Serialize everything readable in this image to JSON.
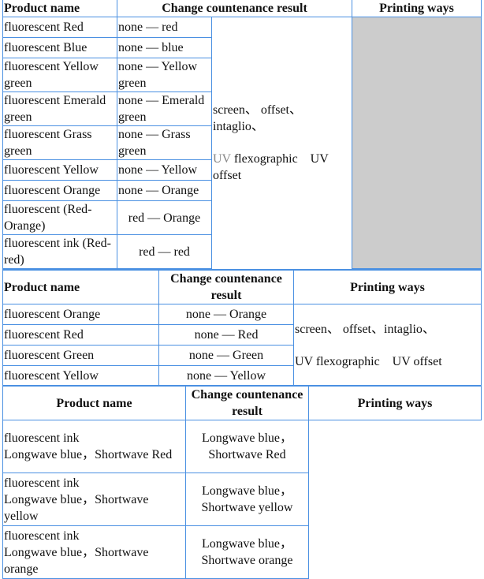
{
  "table1": {
    "headers": [
      "Product name",
      "Change countenance result",
      "Printing ways"
    ],
    "rows": [
      [
        "fluorescent Red",
        "none — red"
      ],
      [
        "fluorescent Blue",
        "none — blue"
      ],
      [
        "fluorescent Yellow green",
        "none — Yellow green"
      ],
      [
        "fluorescent Emerald green",
        "none — Emerald green"
      ],
      [
        "fluorescent Grass green",
        "none — Grass green"
      ],
      [
        "fluorescent Yellow",
        "none — Yellow"
      ],
      [
        "fluorescent Orange",
        "none — Orange"
      ],
      [
        "fluorescent (Red-Orange)",
        "red — Orange"
      ],
      [
        "fluorescent ink (Red-red)",
        "red — red"
      ]
    ],
    "printing_line1": "screen、 offset、intaglio、",
    "printing_uv": "UV",
    "printing_line2": " flexographic　UV offset",
    "shaded_color": "#cccccc"
  },
  "table2": {
    "headers": [
      "Product name",
      "Change countenance result",
      "Printing ways"
    ],
    "rows": [
      [
        "fluorescent Orange",
        "none — Orange"
      ],
      [
        "fluorescent Red",
        "none — Red"
      ],
      [
        "fluorescent Green",
        "none — Green"
      ],
      [
        "fluorescent Yellow",
        "none — Yellow"
      ]
    ],
    "printing_line1": "screen、 offset、intaglio、",
    "printing_line2": "UV flexographic　UV offset"
  },
  "table3": {
    "headers": [
      "Product name",
      "Change countenance result",
      "Printing ways"
    ],
    "rows": [
      [
        "fluorescent ink",
        "Longwave blue，Shortwave Red",
        "Longwave blue，",
        "Shortwave Red"
      ],
      [
        "fluorescent ink",
        "Longwave blue，Shortwave yellow",
        "Longwave blue，",
        "Shortwave yellow"
      ],
      [
        "fluorescent ink",
        "Longwave blue，Shortwave orange",
        "Longwave blue，",
        "Shortwave orange"
      ]
    ]
  },
  "border_color": "#4a90e2"
}
